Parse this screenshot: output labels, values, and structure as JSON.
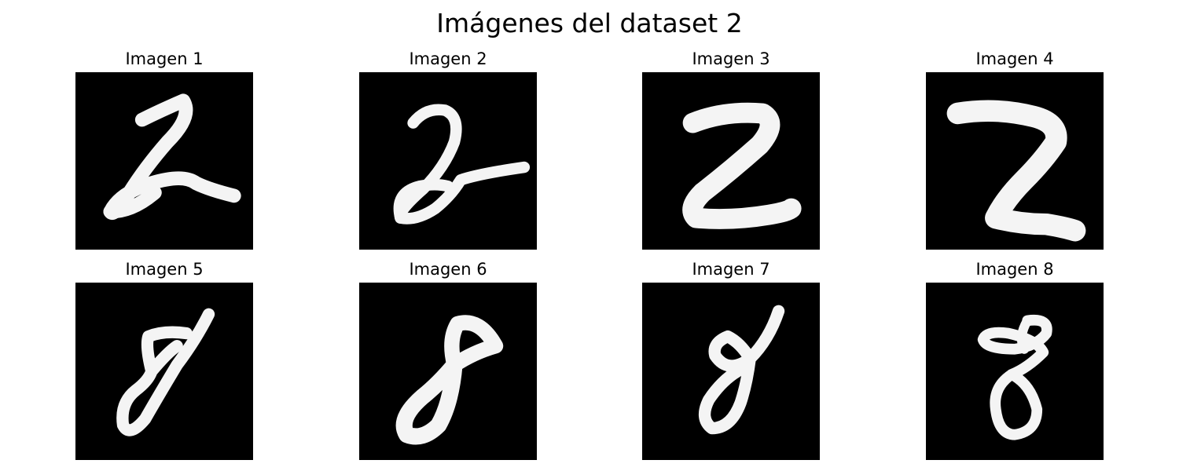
{
  "figure": {
    "title": "Imágenes del dataset 2"
  },
  "panels": [
    {
      "title": "Imagen 1",
      "digit": "2"
    },
    {
      "title": "Imagen 2",
      "digit": "2"
    },
    {
      "title": "Imagen 3",
      "digit": "2"
    },
    {
      "title": "Imagen 4",
      "digit": "2"
    },
    {
      "title": "Imagen 5",
      "digit": "8"
    },
    {
      "title": "Imagen 6",
      "digit": "8"
    },
    {
      "title": "Imagen 7",
      "digit": "8"
    },
    {
      "title": "Imagen 8",
      "digit": "8"
    }
  ],
  "colors": {
    "background": "#000000",
    "stroke": "#f4f4f4"
  }
}
